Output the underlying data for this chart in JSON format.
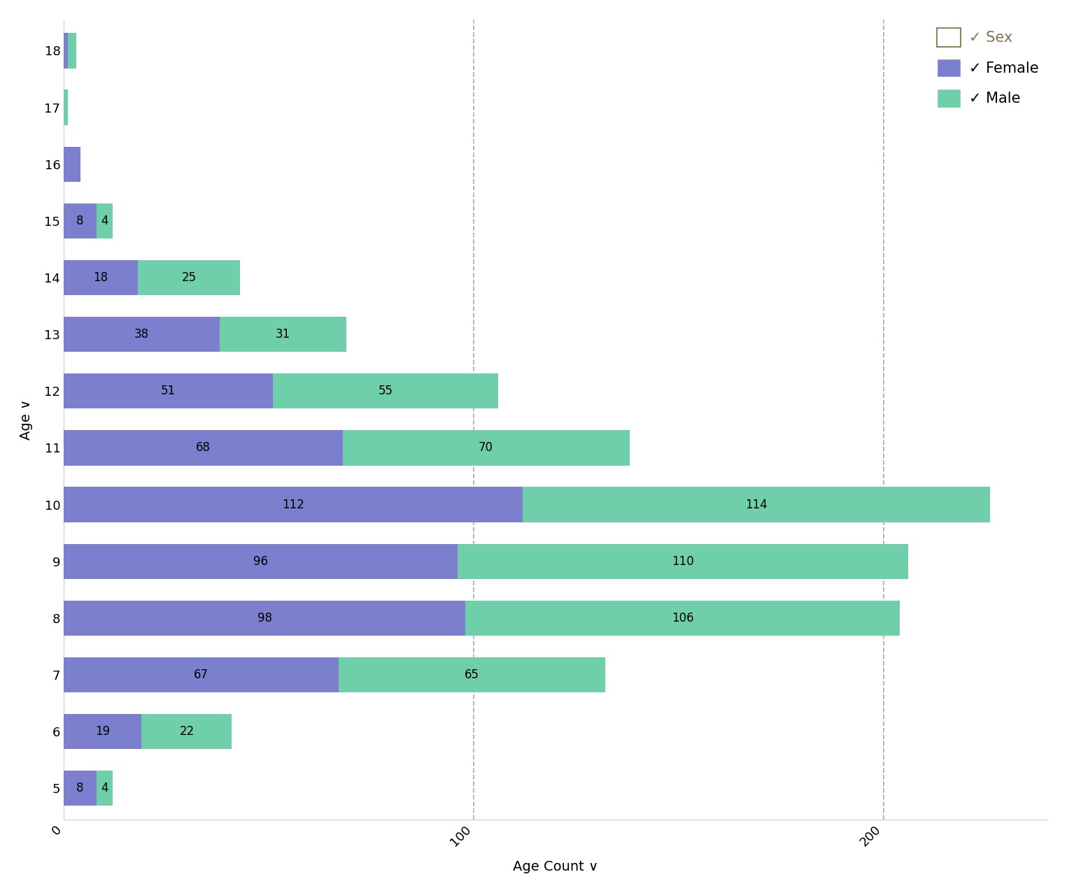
{
  "ages": [
    5,
    6,
    7,
    8,
    9,
    10,
    11,
    12,
    13,
    14,
    15,
    16,
    17,
    18
  ],
  "female": [
    8,
    19,
    67,
    98,
    96,
    112,
    68,
    51,
    38,
    18,
    8,
    4,
    0,
    1
  ],
  "male": [
    4,
    22,
    65,
    106,
    110,
    114,
    70,
    55,
    31,
    25,
    4,
    0,
    1,
    2
  ],
  "female_color": "#7b7fce",
  "male_color": "#6ecfaa",
  "bar_height": 0.62,
  "xlabel": "Age Count ∨",
  "ylabel": "Age ∨",
  "dashed_lines": [
    100,
    200
  ],
  "dashed_color": "#b0b0b0",
  "background_color": "#ffffff",
  "legend_title": "✓ Sex",
  "legend_female": "✓ Female",
  "legend_male": "✓ Male",
  "legend_female_color": "#7b7fce",
  "legend_male_color": "#6ecfaa",
  "legend_title_facecolor": "#ffffff",
  "legend_title_edgecolor": "#888866",
  "legend_title_color": "#8B7355",
  "text_fontsize": 12,
  "label_fontsize": 14,
  "tick_fontsize": 13,
  "legend_fontsize": 15,
  "xlim_max": 240,
  "xticks": [
    0,
    100,
    200
  ],
  "xtick_labels": [
    "0",
    "100",
    "200"
  ]
}
